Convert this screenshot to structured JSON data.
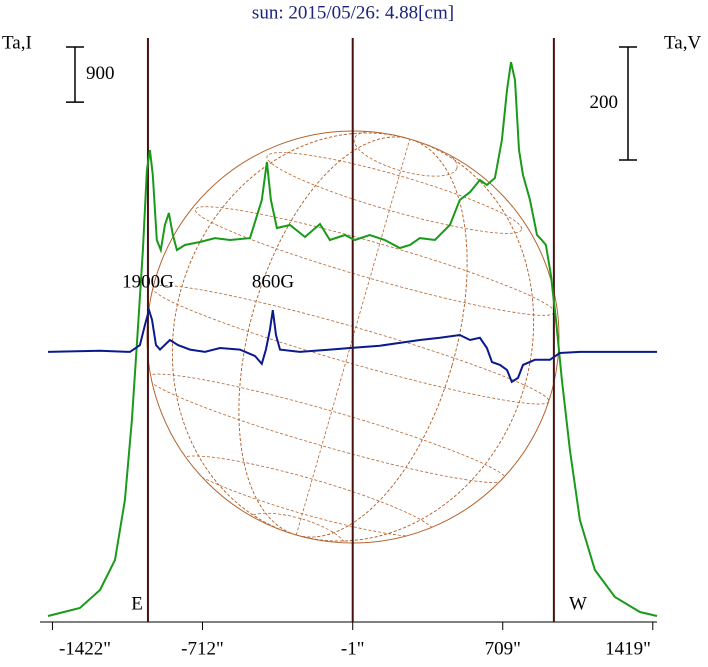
{
  "chart_data": {
    "type": "line",
    "title": "sun: 2015/05/26: 4.88[cm]",
    "ylabel": "Ta,I",
    "y2label": "Ta,V",
    "xlim": [
      -1443,
      1439
    ],
    "ylim": [
      0,
      9500
    ],
    "y2lim": [
      -478,
      552
    ],
    "xticks": [
      {
        "value": -1422,
        "label": "-1422\""
      },
      {
        "value": -712,
        "label": "-712\""
      },
      {
        "value": -1,
        "label": "-1\""
      },
      {
        "value": 709,
        "label": "709\""
      },
      {
        "value": 1419,
        "label": "1419\""
      }
    ],
    "vlines": [
      -970,
      -1,
      951
    ],
    "scalebars": [
      {
        "value": 900,
        "label": "900",
        "axis": "y"
      },
      {
        "value": 200,
        "label": "200",
        "axis": "y2"
      }
    ],
    "annotations": [
      "1900G",
      "860G",
      "E",
      "W"
    ],
    "series": [
      {
        "color": "#1a9a1a",
        "axis": "y",
        "x": [
          -1443,
          -1292,
          -1197,
          -1126,
          -1079,
          -1046,
          -1018,
          -994,
          -975,
          -961,
          -947,
          -928,
          -909,
          -890,
          -871,
          -852,
          -833,
          -795,
          -724,
          -653,
          -582,
          -487,
          -431,
          -407,
          -388,
          -360,
          -298,
          -227,
          -156,
          -109,
          -38,
          9,
          80,
          151,
          222,
          270,
          317,
          388,
          459,
          506,
          554,
          601,
          634,
          672,
          705,
          729,
          748,
          767,
          786,
          805,
          838,
          871,
          894,
          913,
          937,
          961,
          989,
          1027,
          1074,
          1145,
          1240,
          1358,
          1439
        ],
        "values": [
          98,
          228,
          522,
          1012,
          1991,
          3297,
          4766,
          6072,
          7378,
          7705,
          7297,
          6235,
          6072,
          6480,
          6676,
          6317,
          6072,
          6153,
          6202,
          6267,
          6235,
          6267,
          6888,
          7508,
          6888,
          6431,
          6480,
          6284,
          6496,
          6235,
          6317,
          6235,
          6317,
          6235,
          6105,
          6153,
          6267,
          6235,
          6480,
          6888,
          7018,
          7214,
          7133,
          7247,
          7868,
          8683,
          9140,
          8846,
          7705,
          7297,
          6888,
          6317,
          6235,
          6153,
          5664,
          4929,
          3950,
          2808,
          1665,
          849,
          408,
          163,
          98
        ]
      },
      {
        "color": "#0a1a8c",
        "axis": "y2",
        "x": [
          -1443,
          -1197,
          -1055,
          -1008,
          -984,
          -965,
          -951,
          -932,
          -913,
          -866,
          -828,
          -771,
          -700,
          -629,
          -535,
          -464,
          -431,
          -412,
          -393,
          -379,
          -364,
          -345,
          -251,
          -109,
          -14,
          128,
          222,
          317,
          412,
          506,
          554,
          601,
          634,
          658,
          696,
          729,
          752,
          781,
          805,
          861,
          932,
          979,
          1074,
          1264,
          1439
        ],
        "values": [
          0,
          2,
          0,
          12,
          48,
          74,
          57,
          12,
          4,
          21,
          12,
          4,
          0,
          7,
          4,
          -7,
          -21,
          4,
          39,
          74,
          30,
          4,
          0,
          4,
          7,
          11,
          16,
          21,
          25,
          30,
          21,
          25,
          7,
          -18,
          -23,
          -32,
          -53,
          -46,
          -23,
          -14,
          -14,
          -2,
          0,
          0,
          0
        ]
      }
    ]
  }
}
